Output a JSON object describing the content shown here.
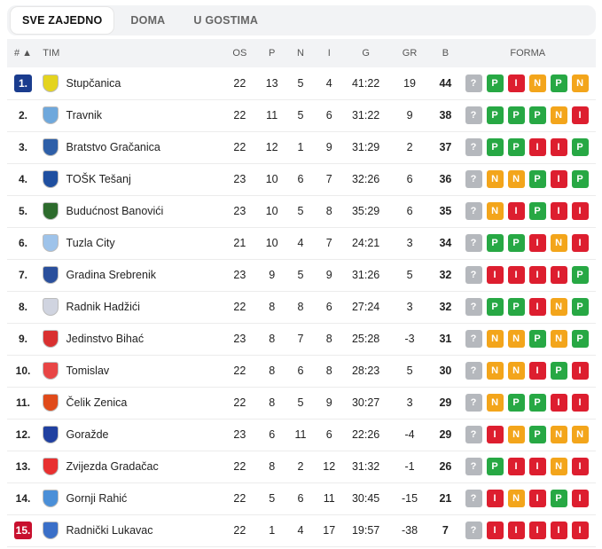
{
  "tabs": [
    "SVE ZAJEDNO",
    "DOMA",
    "U GOSTIMA"
  ],
  "headers": {
    "rank": "# ▲",
    "team": "TIM",
    "os": "OS",
    "p": "P",
    "n": "N",
    "i": "I",
    "g": "G",
    "gr": "GR",
    "b": "B",
    "forma": "FORMA"
  },
  "colors": {
    "P": "#27a844",
    "N": "#f3a51b",
    "I": "#dd1e2f",
    "unknown": "#b5b8bd",
    "rank_blue": "#1a3c8e",
    "rank_red": "#c8102e"
  },
  "rows": [
    {
      "rank": "1.",
      "rank_style": "blue",
      "team": "Stupčanica",
      "os": "22",
      "p": "13",
      "n": "5",
      "i": "4",
      "g": "41:22",
      "gr": "19",
      "b": "44",
      "forma": [
        "?",
        "P",
        "I",
        "N",
        "P",
        "N"
      ],
      "crest": "#e4d420"
    },
    {
      "rank": "2.",
      "rank_style": "",
      "team": "Travnik",
      "os": "22",
      "p": "11",
      "n": "5",
      "i": "6",
      "g": "31:22",
      "gr": "9",
      "b": "38",
      "forma": [
        "?",
        "P",
        "P",
        "P",
        "N",
        "I"
      ],
      "crest": "#6fa8dc"
    },
    {
      "rank": "3.",
      "rank_style": "",
      "team": "Bratstvo Gračanica",
      "os": "22",
      "p": "12",
      "n": "1",
      "i": "9",
      "g": "31:29",
      "gr": "2",
      "b": "37",
      "forma": [
        "?",
        "P",
        "P",
        "I",
        "I",
        "P"
      ],
      "crest": "#2e5fa8"
    },
    {
      "rank": "4.",
      "rank_style": "",
      "team": "TOŠK Tešanj",
      "os": "23",
      "p": "10",
      "n": "6",
      "i": "7",
      "g": "32:26",
      "gr": "6",
      "b": "36",
      "forma": [
        "?",
        "N",
        "N",
        "P",
        "I",
        "P"
      ],
      "crest": "#1f4fa0"
    },
    {
      "rank": "5.",
      "rank_style": "",
      "team": "Budućnost Banovići",
      "os": "23",
      "p": "10",
      "n": "5",
      "i": "8",
      "g": "35:29",
      "gr": "6",
      "b": "35",
      "forma": [
        "?",
        "N",
        "I",
        "P",
        "I",
        "I"
      ],
      "crest": "#2d6b2d"
    },
    {
      "rank": "6.",
      "rank_style": "",
      "team": "Tuzla City",
      "os": "21",
      "p": "10",
      "n": "4",
      "i": "7",
      "g": "24:21",
      "gr": "3",
      "b": "34",
      "forma": [
        "?",
        "P",
        "P",
        "I",
        "N",
        "I"
      ],
      "crest": "#9ec3ea"
    },
    {
      "rank": "7.",
      "rank_style": "",
      "team": "Gradina Srebrenik",
      "os": "23",
      "p": "9",
      "n": "5",
      "i": "9",
      "g": "31:26",
      "gr": "5",
      "b": "32",
      "forma": [
        "?",
        "I",
        "I",
        "I",
        "I",
        "P"
      ],
      "crest": "#2a4f9c"
    },
    {
      "rank": "8.",
      "rank_style": "",
      "team": "Radnik Hadžići",
      "os": "22",
      "p": "8",
      "n": "8",
      "i": "6",
      "g": "27:24",
      "gr": "3",
      "b": "32",
      "forma": [
        "?",
        "P",
        "P",
        "I",
        "N",
        "P"
      ],
      "crest": "#d0d4e0"
    },
    {
      "rank": "9.",
      "rank_style": "",
      "team": "Jedinstvo Bihać",
      "os": "23",
      "p": "8",
      "n": "7",
      "i": "8",
      "g": "25:28",
      "gr": "-3",
      "b": "31",
      "forma": [
        "?",
        "N",
        "N",
        "P",
        "N",
        "P"
      ],
      "crest": "#d93030"
    },
    {
      "rank": "10.",
      "rank_style": "",
      "team": "Tomislav",
      "os": "22",
      "p": "8",
      "n": "6",
      "i": "8",
      "g": "28:23",
      "gr": "5",
      "b": "30",
      "forma": [
        "?",
        "N",
        "N",
        "I",
        "P",
        "I"
      ],
      "crest": "#e84545"
    },
    {
      "rank": "11.",
      "rank_style": "",
      "team": "Čelik Zenica",
      "os": "22",
      "p": "8",
      "n": "5",
      "i": "9",
      "g": "30:27",
      "gr": "3",
      "b": "29",
      "forma": [
        "?",
        "N",
        "P",
        "P",
        "I",
        "I"
      ],
      "crest": "#e04a1a"
    },
    {
      "rank": "12.",
      "rank_style": "",
      "team": "Goražde",
      "os": "23",
      "p": "6",
      "n": "11",
      "i": "6",
      "g": "22:26",
      "gr": "-4",
      "b": "29",
      "forma": [
        "?",
        "I",
        "N",
        "P",
        "N",
        "N"
      ],
      "crest": "#2040a0"
    },
    {
      "rank": "13.",
      "rank_style": "",
      "team": "Zvijezda Gradačac",
      "os": "22",
      "p": "8",
      "n": "2",
      "i": "12",
      "g": "31:32",
      "gr": "-1",
      "b": "26",
      "forma": [
        "?",
        "P",
        "I",
        "I",
        "N",
        "I"
      ],
      "crest": "#e83030"
    },
    {
      "rank": "14.",
      "rank_style": "",
      "team": "Gornji Rahić",
      "os": "22",
      "p": "5",
      "n": "6",
      "i": "11",
      "g": "30:45",
      "gr": "-15",
      "b": "21",
      "forma": [
        "?",
        "I",
        "N",
        "I",
        "P",
        "I"
      ],
      "crest": "#4a8fd8"
    },
    {
      "rank": "15.",
      "rank_style": "red",
      "team": "Radnički Lukavac",
      "os": "22",
      "p": "1",
      "n": "4",
      "i": "17",
      "g": "19:57",
      "gr": "-38",
      "b": "7",
      "forma": [
        "?",
        "I",
        "I",
        "I",
        "I",
        "I"
      ],
      "crest": "#3a6fc8"
    }
  ]
}
